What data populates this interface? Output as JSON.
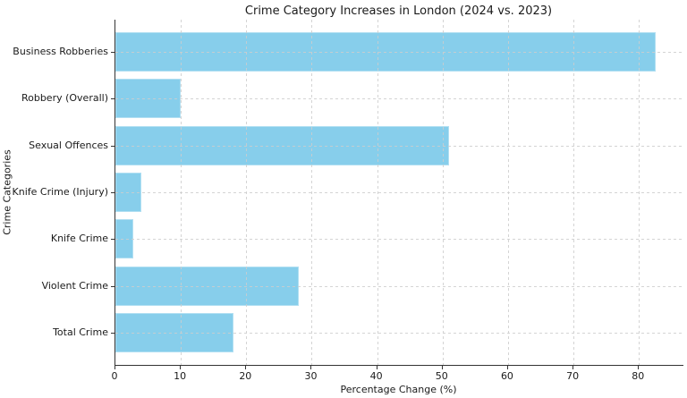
{
  "chart_data": {
    "type": "bar",
    "orientation": "horizontal",
    "title": "Crime Category Increases in London (2024 vs. 2023)",
    "xlabel": "Percentage Change (%)",
    "ylabel": "Crime Categories",
    "categories": [
      "Business Robberies",
      "Robbery (Overall)",
      "Sexual Offences",
      "Knife Crime (Injury)",
      "Knife Crime",
      "Violent Crime",
      "Total Crime"
    ],
    "values": [
      82.6,
      10,
      51,
      4,
      2.8,
      28,
      18
    ],
    "xticks": [
      0,
      10,
      20,
      30,
      40,
      50,
      60,
      70,
      80
    ],
    "xlim": [
      0,
      86.8
    ],
    "bar_color": "#87ceeb",
    "grid": true,
    "grid_style": "dashed",
    "legend": "none"
  }
}
